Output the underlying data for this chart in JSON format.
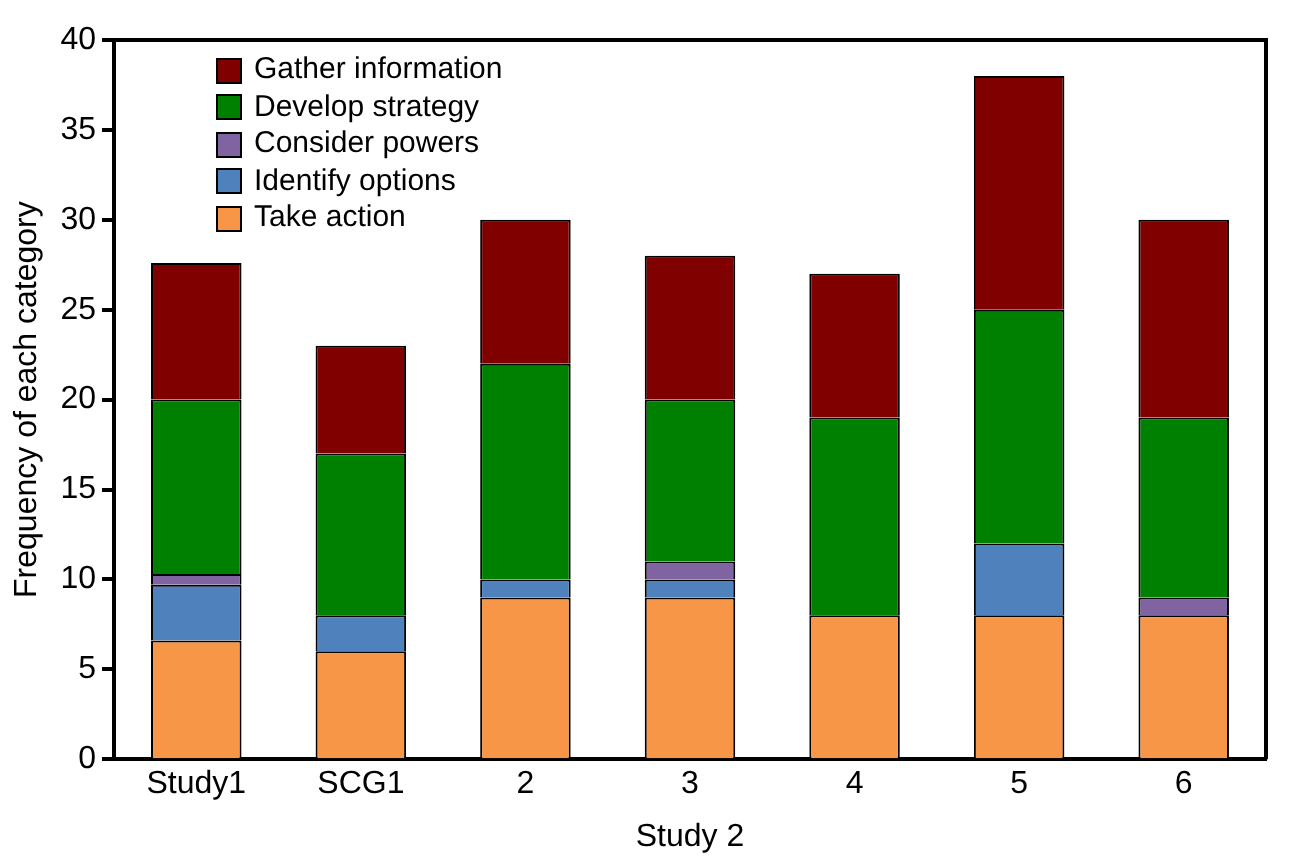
{
  "chart_data": {
    "type": "bar",
    "stacked": true,
    "xlabel": "Study 2",
    "ylabel": "Frequency of each category",
    "categories": [
      "Study1",
      "SCG1",
      "2",
      "3",
      "4",
      "5",
      "6"
    ],
    "series": [
      {
        "name": "Take action",
        "color": "#f79646",
        "values": [
          6.6,
          6,
          9,
          9,
          8,
          8,
          8
        ]
      },
      {
        "name": "Identify options",
        "color": "#4f81bd",
        "values": [
          3.1,
          2,
          1,
          1,
          0,
          4,
          0
        ]
      },
      {
        "name": "Consider powers",
        "color": "#8064a2",
        "values": [
          0.6,
          0,
          0,
          1,
          0,
          0,
          1
        ]
      },
      {
        "name": "Develop strategy",
        "color": "#008000",
        "values": [
          9.7,
          9,
          12,
          9,
          11,
          13,
          10
        ]
      },
      {
        "name": "Gather information",
        "color": "#800000",
        "values": [
          7.6,
          6,
          8,
          8,
          8,
          13,
          11
        ]
      }
    ],
    "ylim": [
      0,
      40
    ],
    "yticks": [
      0,
      5,
      10,
      15,
      20,
      25,
      30,
      35,
      40
    ],
    "grid": false,
    "legend": "top left"
  }
}
